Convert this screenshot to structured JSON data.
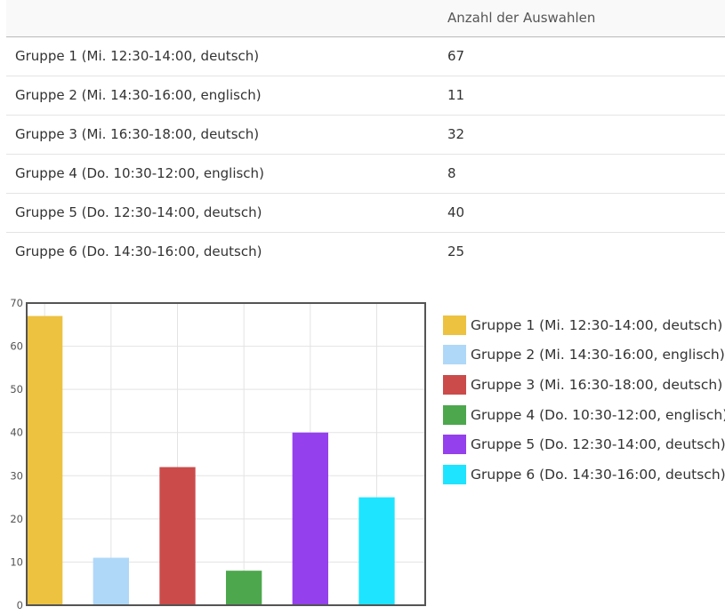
{
  "table": {
    "header": {
      "name": "",
      "count": "Anzahl der Auswahlen"
    },
    "rows": [
      {
        "name": "Gruppe 1 (Mi. 12:30-14:00, deutsch)",
        "count": "67"
      },
      {
        "name": "Gruppe 2 (Mi. 14:30-16:00, englisch)",
        "count": "11"
      },
      {
        "name": "Gruppe 3 (Mi. 16:30-18:00, deutsch)",
        "count": "32"
      },
      {
        "name": "Gruppe 4 (Do. 10:30-12:00, englisch)",
        "count": "8"
      },
      {
        "name": "Gruppe 5 (Do. 12:30-14:00, deutsch)",
        "count": "40"
      },
      {
        "name": "Gruppe 6 (Do. 14:30-16:00, deutsch)",
        "count": "25"
      }
    ]
  },
  "chart_data": {
    "type": "bar",
    "title": "",
    "xlabel": "",
    "ylabel": "",
    "ylim": [
      0,
      70
    ],
    "yticks": [
      0,
      10,
      20,
      30,
      40,
      50,
      60,
      70
    ],
    "grid": true,
    "legend_position": "right",
    "categories": [
      "Gruppe 1 (Mi. 12:30-14:00, deutsch)",
      "Gruppe 2 (Mi. 14:30-16:00, englisch)",
      "Gruppe 3 (Mi. 16:30-18:00, deutsch)",
      "Gruppe 4 (Do. 10:30-12:00, englisch)",
      "Gruppe 5 (Do. 12:30-14:00, deutsch)",
      "Gruppe 6 (Do. 14:30-16:00, deutsch)"
    ],
    "values": [
      67,
      11,
      32,
      8,
      40,
      25
    ],
    "colors": [
      "#edc240",
      "#afd8f8",
      "#cb4b4b",
      "#4da74d",
      "#9440ed",
      "#1ee4ff"
    ]
  }
}
